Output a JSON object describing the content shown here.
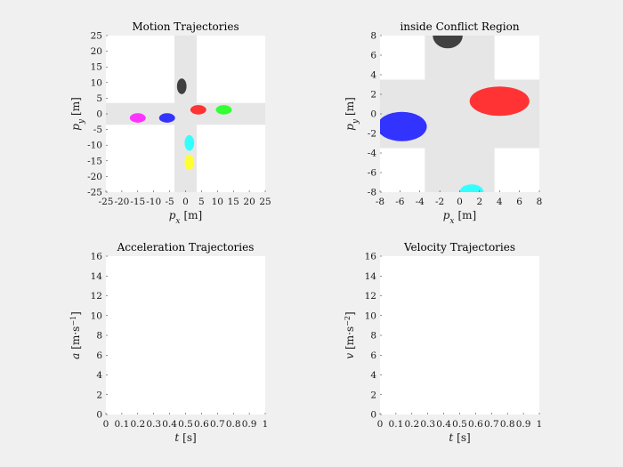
{
  "chart_data": [
    {
      "type": "scatter",
      "title": "Motion Trajectories",
      "xlabel_var": "p",
      "xlabel_sub": "x",
      "xlabel_unit": "[m]",
      "ylabel_var": "p",
      "ylabel_sub": "y",
      "ylabel_unit": "[m]",
      "xlim": [
        -25,
        25
      ],
      "ylim": [
        -25,
        25
      ],
      "xticks": [
        "-25",
        "-20",
        "-15",
        "-10",
        "-5",
        "0",
        "5",
        "10",
        "15",
        "20",
        "25"
      ],
      "yticks": [
        "-25",
        "-20",
        "-15",
        "-10",
        "-5",
        "0",
        "5",
        "10",
        "15",
        "20",
        "25"
      ],
      "road_half_width": 3.5,
      "vehicles": [
        {
          "color": "#404040",
          "cx": -1.2,
          "cy": 8.8,
          "rx": 1.5,
          "ry": 2.5
        },
        {
          "color": "#ff3333",
          "cx": 4.0,
          "cy": 1.3,
          "rx": 2.5,
          "ry": 1.5
        },
        {
          "color": "#33ff33",
          "cx": 12.0,
          "cy": 1.3,
          "rx": 2.5,
          "ry": 1.5
        },
        {
          "color": "#3333ff",
          "cx": -5.8,
          "cy": -1.3,
          "rx": 2.5,
          "ry": 1.5
        },
        {
          "color": "#ff33ff",
          "cx": -15.0,
          "cy": -1.3,
          "rx": 2.5,
          "ry": 1.5
        },
        {
          "color": "#33ffff",
          "cx": 1.2,
          "cy": -9.3,
          "rx": 1.5,
          "ry": 2.5
        },
        {
          "color": "#ffff33",
          "cx": 1.2,
          "cy": -15.5,
          "rx": 1.5,
          "ry": 2.5
        }
      ]
    },
    {
      "type": "scatter",
      "title": "inside Conflict Region",
      "xlabel_var": "p",
      "xlabel_sub": "x",
      "xlabel_unit": "[m]",
      "ylabel_var": "p",
      "ylabel_sub": "y",
      "ylabel_unit": "[m]",
      "xlim": [
        -8,
        8
      ],
      "ylim": [
        -8,
        8
      ],
      "xticks": [
        "-8",
        "-6",
        "-4",
        "-2",
        "0",
        "2",
        "4",
        "6",
        "8"
      ],
      "yticks": [
        "-8",
        "-6",
        "-4",
        "-2",
        "0",
        "2",
        "4",
        "6",
        "8"
      ],
      "road_half_width": 3.5,
      "vehicles": [
        {
          "color": "#404040",
          "cx": -1.2,
          "cy": 8.0,
          "rx": 1.5,
          "ry": 1.3
        },
        {
          "color": "#ff3333",
          "cx": 4.0,
          "cy": 1.3,
          "rx": 3.0,
          "ry": 1.5
        },
        {
          "color": "#3333ff",
          "cx": -5.8,
          "cy": -1.3,
          "rx": 2.5,
          "ry": 1.5
        },
        {
          "color": "#33ffff",
          "cx": 1.2,
          "cy": -8.0,
          "rx": 1.2,
          "ry": 0.8
        }
      ]
    },
    {
      "type": "line",
      "title": "Acceleration Trajectories",
      "xlabel_var": "t",
      "xlabel_sub": "",
      "xlabel_unit": "[s]",
      "ylabel_var": "a",
      "ylabel_sub": "",
      "ylabel_unit": "[m·s",
      "ylabel_unit_sup": "−1",
      "ylabel_unit_end": "]",
      "xlim": [
        0,
        1
      ],
      "ylim": [
        0,
        16
      ],
      "xticks": [
        "0",
        "0.1",
        "0.2",
        "0.3",
        "0.4",
        "0.5",
        "0.6",
        "0.7",
        "0.8",
        "0.9",
        "1"
      ],
      "yticks": [
        "0",
        "2",
        "4",
        "6",
        "8",
        "10",
        "12",
        "14",
        "16"
      ],
      "series": []
    },
    {
      "type": "line",
      "title": "Velocity Trajectories",
      "xlabel_var": "t",
      "xlabel_sub": "",
      "xlabel_unit": "[s]",
      "ylabel_var": "v",
      "ylabel_sub": "",
      "ylabel_unit": "[m·s",
      "ylabel_unit_sup": "−2",
      "ylabel_unit_end": "]",
      "xlim": [
        0,
        1
      ],
      "ylim": [
        0,
        16
      ],
      "xticks": [
        "0",
        "0.1",
        "0.2",
        "0.3",
        "0.4",
        "0.5",
        "0.6",
        "0.7",
        "0.8",
        "0.9",
        "1"
      ],
      "yticks": [
        "0",
        "2",
        "4",
        "6",
        "8",
        "10",
        "12",
        "14",
        "16"
      ],
      "series": []
    }
  ],
  "colors": {
    "figure_bg": "#f0f0f0",
    "axes_bg": "#ffffff",
    "road": "#e6e6e6"
  }
}
